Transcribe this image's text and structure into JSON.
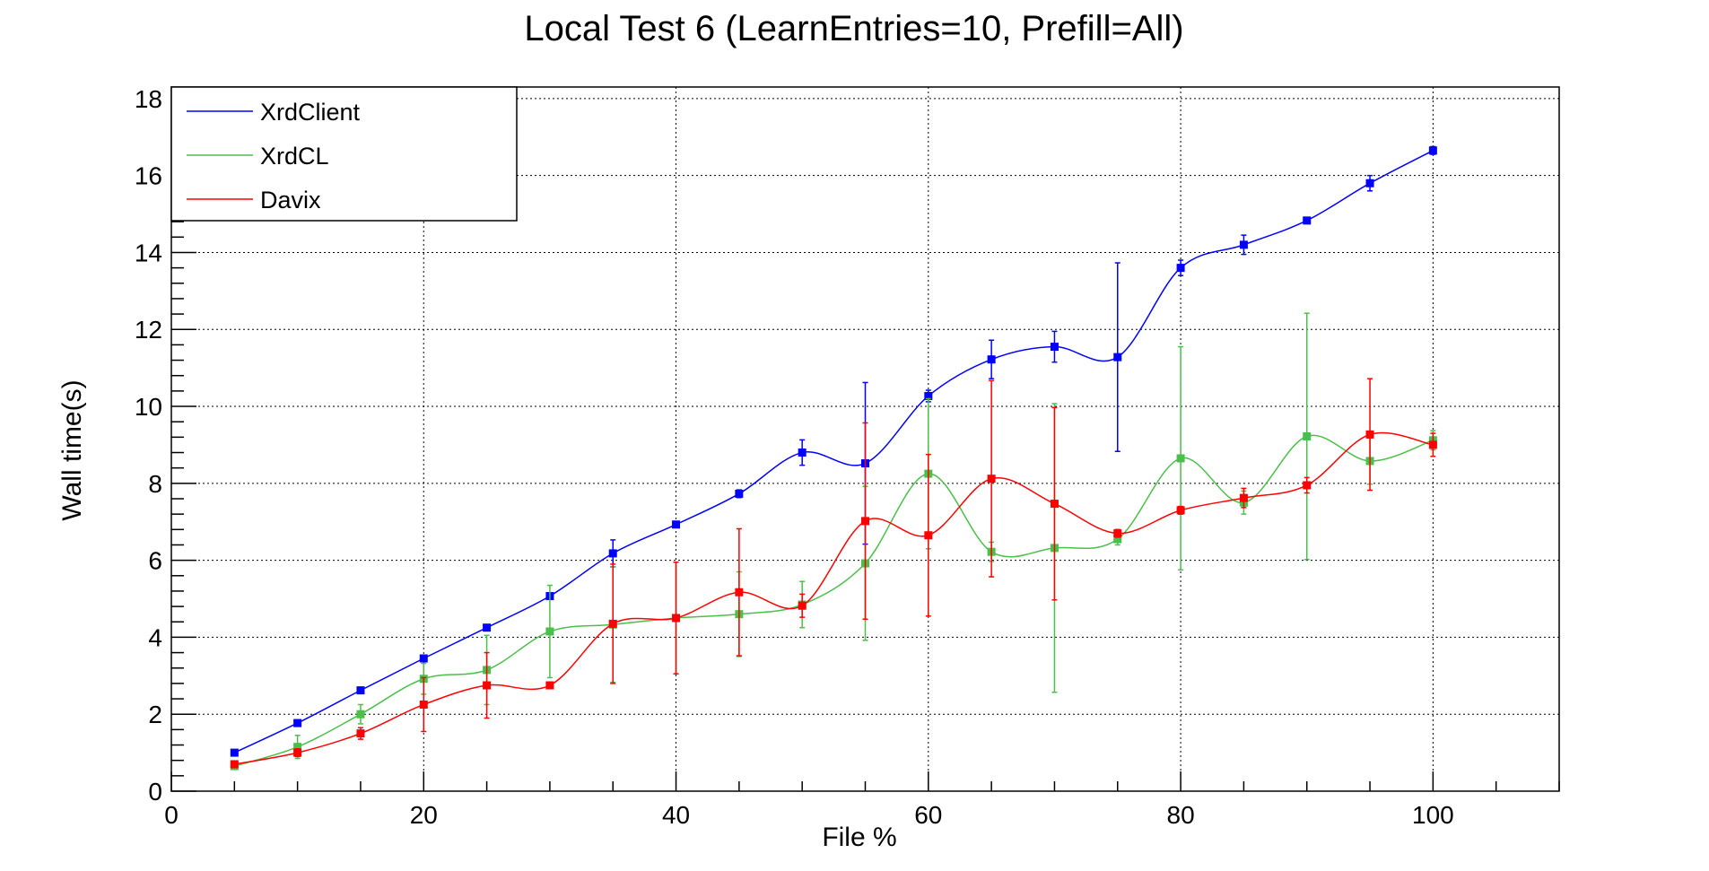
{
  "chart_data": {
    "type": "line",
    "title": "Local Test 6 (LearnEntries=10, Prefill=All)",
    "xlabel": "File %",
    "ylabel": "Wall time(s)",
    "xlim": [
      0,
      110
    ],
    "ylim": [
      0,
      18.3
    ],
    "x_ticks": [
      0,
      20,
      40,
      60,
      80,
      100
    ],
    "y_ticks": [
      0,
      2,
      4,
      6,
      8,
      10,
      12,
      14,
      16,
      18
    ],
    "grid": true,
    "legend_position": "top-left",
    "x": [
      5,
      10,
      15,
      20,
      25,
      30,
      35,
      40,
      45,
      50,
      55,
      60,
      65,
      70,
      75,
      80,
      85,
      90,
      95,
      100
    ],
    "series": [
      {
        "name": "XrdClient",
        "color": "#0000ff",
        "values": [
          1.0,
          1.77,
          2.62,
          3.45,
          4.25,
          5.07,
          6.18,
          6.93,
          7.73,
          8.8,
          8.52,
          10.27,
          11.22,
          11.55,
          11.28,
          13.6,
          14.2,
          14.83,
          15.8,
          16.65
        ],
        "errors": [
          0.03,
          0.03,
          0.03,
          0.04,
          0.04,
          0.05,
          0.35,
          0.08,
          0.1,
          0.33,
          2.1,
          0.15,
          0.5,
          0.4,
          2.45,
          0.2,
          0.25,
          0.05,
          0.2,
          0.1
        ]
      },
      {
        "name": "XrdCL",
        "color": "#4bbf4b",
        "values": [
          0.65,
          1.15,
          2.0,
          2.92,
          3.15,
          4.15,
          4.33,
          4.5,
          4.6,
          4.85,
          5.92,
          8.25,
          6.22,
          6.32,
          6.55,
          8.65,
          7.5,
          9.22,
          8.58,
          9.12
        ],
        "errors": [
          0.05,
          0.3,
          0.25,
          0.4,
          0.9,
          1.2,
          1.5,
          1.45,
          1.1,
          0.6,
          2.0,
          1.95,
          0.25,
          3.75,
          0.15,
          2.9,
          0.3,
          3.2,
          0.6,
          0.25
        ]
      },
      {
        "name": "Davix",
        "color": "#ff0000",
        "values": [
          0.7,
          1.0,
          1.5,
          2.25,
          2.75,
          2.75,
          4.35,
          4.5,
          5.17,
          4.82,
          7.02,
          6.65,
          8.12,
          7.47,
          6.7,
          7.3,
          7.62,
          7.95,
          9.27,
          9.0
        ],
        "errors": [
          0.05,
          0.1,
          0.15,
          0.7,
          0.85,
          0.05,
          1.55,
          1.45,
          1.65,
          0.3,
          2.55,
          2.1,
          2.55,
          2.5,
          0.1,
          0.1,
          0.25,
          0.2,
          1.45,
          0.3
        ]
      }
    ]
  }
}
